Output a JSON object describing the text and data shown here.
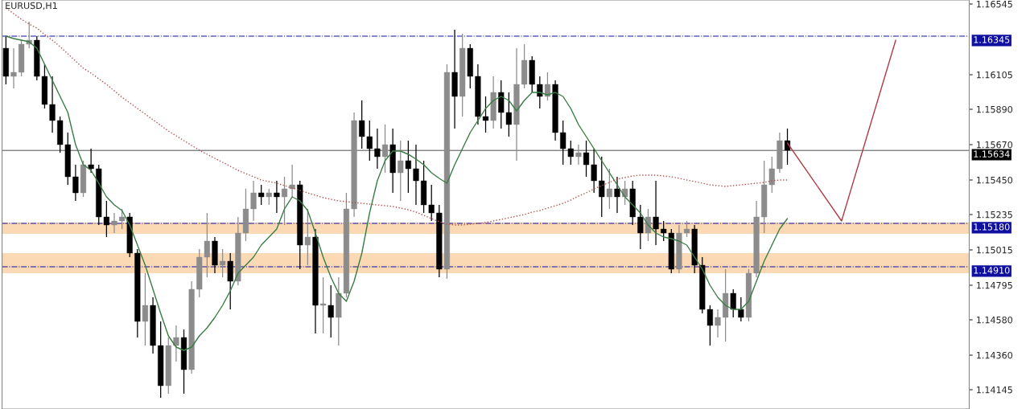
{
  "chart_data": {
    "type": "candlestick",
    "title": "EURUSD,H1",
    "categories": [
      null,
      null,
      null,
      null,
      null,
      null,
      null,
      null,
      null,
      null,
      null,
      null,
      null,
      null,
      null,
      null,
      null,
      null,
      null,
      null,
      null,
      null,
      null,
      null,
      null,
      null,
      null,
      null,
      null,
      null,
      null,
      null,
      null,
      null,
      null,
      null,
      null,
      null,
      null,
      null,
      null,
      null,
      null,
      null,
      null,
      null,
      null,
      null,
      null,
      null,
      null,
      null,
      null,
      null,
      null,
      null,
      null,
      null,
      null,
      null,
      null,
      null,
      null,
      null,
      null,
      null,
      null,
      null,
      null,
      null,
      null,
      null,
      null,
      null,
      null,
      null,
      null,
      null,
      null,
      null,
      null,
      null,
      null,
      null,
      null,
      null,
      null,
      null,
      null,
      null,
      null,
      null,
      null,
      null,
      null,
      null,
      null,
      null,
      null,
      null,
      null,
      null,
      null,
      null,
      null,
      null,
      null,
      null,
      null,
      null,
      null,
      null,
      null,
      null,
      null,
      null,
      null,
      null,
      null,
      null,
      null,
      null,
      null,
      null,
      null
    ],
    "ohlc": [
      [
        1.1627,
        1.16345,
        1.16045,
        1.16095
      ],
      [
        1.16095,
        1.1627,
        1.1602,
        1.1612
      ],
      [
        1.1612,
        1.1632,
        1.16095,
        1.16295
      ],
      [
        1.16295,
        1.16435,
        1.1627,
        1.1632
      ],
      [
        1.1632,
        1.16345,
        1.1607,
        1.16095
      ],
      [
        1.16095,
        1.1617,
        1.15895,
        1.1592
      ],
      [
        1.1592,
        1.16095,
        1.15745,
        1.1582
      ],
      [
        1.1582,
        1.15845,
        1.1562,
        1.1567
      ],
      [
        1.1567,
        1.15745,
        1.1542,
        1.1547
      ],
      [
        1.1547,
        1.15545,
        1.1532,
        1.1537
      ],
      [
        1.1537,
        1.1557,
        1.15345,
        1.15545
      ],
      [
        1.15545,
        1.15645,
        1.15495,
        1.1552
      ],
      [
        1.1552,
        1.15545,
        1.1517,
        1.1522
      ],
      [
        1.1522,
        1.1532,
        1.15095,
        1.1517
      ],
      [
        1.1517,
        1.15245,
        1.1512,
        1.15195
      ],
      [
        1.15195,
        1.1527,
        1.15145,
        1.1522
      ],
      [
        1.1522,
        1.15245,
        1.1497,
        1.14995
      ],
      [
        1.14995,
        1.1502,
        1.1447,
        1.1457
      ],
      [
        1.1457,
        1.1487,
        1.1442,
        1.1467
      ],
      [
        1.1467,
        1.1472,
        1.1437,
        1.1442
      ],
      [
        1.1442,
        1.1457,
        1.14095,
        1.1417
      ],
      [
        1.1417,
        1.1447,
        1.1412,
        1.1442
      ],
      [
        1.1442,
        1.14545,
        1.1432,
        1.1447
      ],
      [
        1.1447,
        1.1452,
        1.1412,
        1.1427
      ],
      [
        1.1427,
        1.1482,
        1.14245,
        1.1477
      ],
      [
        1.1477,
        1.1502,
        1.1472,
        1.1497
      ],
      [
        1.1497,
        1.15245,
        1.14845,
        1.1507
      ],
      [
        1.1507,
        1.15095,
        1.1487,
        1.1492
      ],
      [
        1.1492,
        1.1502,
        1.14845,
        1.14945
      ],
      [
        1.14945,
        1.14995,
        1.14645,
        1.1482
      ],
      [
        1.1482,
        1.1522,
        1.14795,
        1.1512
      ],
      [
        1.1512,
        1.15395,
        1.1507,
        1.1527
      ],
      [
        1.1527,
        1.15445,
        1.15195,
        1.1537
      ],
      [
        1.1537,
        1.1542,
        1.15295,
        1.15345
      ],
      [
        1.15345,
        1.15395,
        1.15295,
        1.1537
      ],
      [
        1.1537,
        1.15445,
        1.15245,
        1.15345
      ],
      [
        1.15345,
        1.1547,
        1.1517,
        1.15395
      ],
      [
        1.15395,
        1.15545,
        1.15345,
        1.1542
      ],
      [
        1.1542,
        1.15445,
        1.14895,
        1.15045
      ],
      [
        1.15045,
        1.1527,
        1.1492,
        1.15095
      ],
      [
        1.15095,
        1.15145,
        1.14495,
        1.1467
      ],
      [
        1.1467,
        1.14845,
        1.14495,
        1.1468
      ],
      [
        1.1467,
        1.14795,
        1.1447,
        1.14595
      ],
      [
        1.14595,
        1.14845,
        1.1442,
        1.14745
      ],
      [
        1.14745,
        1.1537,
        1.1472,
        1.1527
      ],
      [
        1.1527,
        1.1587,
        1.1522,
        1.1582
      ],
      [
        1.1582,
        1.15945,
        1.15645,
        1.1572
      ],
      [
        1.1572,
        1.1582,
        1.1557,
        1.15645
      ],
      [
        1.15645,
        1.1577,
        1.1552,
        1.15595
      ],
      [
        1.15595,
        1.15795,
        1.15495,
        1.1567
      ],
      [
        1.1567,
        1.1577,
        1.1537,
        1.15495
      ],
      [
        1.15495,
        1.15695,
        1.1532,
        1.1557
      ],
      [
        1.1557,
        1.15695,
        1.1537,
        1.1552
      ],
      [
        1.1552,
        1.1567,
        1.15295,
        1.15445
      ],
      [
        1.15445,
        1.1557,
        1.15245,
        1.15295
      ],
      [
        1.15295,
        1.1542,
        1.15195,
        1.15245
      ],
      [
        1.15245,
        1.15295,
        1.14845,
        1.14895
      ],
      [
        1.14895,
        1.1617,
        1.14835,
        1.1612
      ],
      [
        1.1612,
        1.16385,
        1.1577,
        1.1597
      ],
      [
        1.1597,
        1.1636,
        1.15845,
        1.1627
      ],
      [
        1.1627,
        1.16295,
        1.1602,
        1.16095
      ],
      [
        1.16095,
        1.1617,
        1.15795,
        1.15845
      ],
      [
        1.15845,
        1.1597,
        1.15745,
        1.1582
      ],
      [
        1.1582,
        1.16095,
        1.1577,
        1.15995
      ],
      [
        1.15995,
        1.1607,
        1.1577,
        1.1587
      ],
      [
        1.1587,
        1.15995,
        1.1572,
        1.15795
      ],
      [
        1.15795,
        1.1627,
        1.1557,
        1.16045
      ],
      [
        1.16045,
        1.16295,
        1.1602,
        1.16195
      ],
      [
        1.16195,
        1.1622,
        1.15995,
        1.16045
      ],
      [
        1.16045,
        1.16095,
        1.15895,
        1.1597
      ],
      [
        1.1597,
        1.1612,
        1.15945,
        1.16045
      ],
      [
        1.16045,
        1.1607,
        1.15695,
        1.15745
      ],
      [
        1.15745,
        1.1582,
        1.15545,
        1.15645
      ],
      [
        1.15645,
        1.15695,
        1.15545,
        1.15595
      ],
      [
        1.15595,
        1.1567,
        1.15545,
        1.1562
      ],
      [
        1.1562,
        1.15695,
        1.1547,
        1.15545
      ],
      [
        1.15545,
        1.15645,
        1.1537,
        1.15445
      ],
      [
        1.15445,
        1.15595,
        1.1522,
        1.15345
      ],
      [
        1.15345,
        1.1552,
        1.1527,
        1.15395
      ],
      [
        1.15395,
        1.1547,
        1.15245,
        1.15345
      ],
      [
        1.15345,
        1.15445,
        1.15295,
        1.15395
      ],
      [
        1.15395,
        1.15445,
        1.1517,
        1.1522
      ],
      [
        1.1522,
        1.15295,
        1.1502,
        1.1512
      ],
      [
        1.1512,
        1.1527,
        1.1507,
        1.1522
      ],
      [
        1.1522,
        1.15445,
        1.15045,
        1.15145
      ],
      [
        1.15145,
        1.15195,
        1.1507,
        1.1512
      ],
      [
        1.1512,
        1.15145,
        1.1487,
        1.14895
      ],
      [
        1.14895,
        1.1517,
        1.1487,
        1.1512
      ],
      [
        1.1512,
        1.15195,
        1.15095,
        1.15145
      ],
      [
        1.15145,
        1.1517,
        1.1487,
        1.1492
      ],
      [
        1.1492,
        1.1497,
        1.1462,
        1.14645
      ],
      [
        1.14645,
        1.1467,
        1.1442,
        1.14545
      ],
      [
        1.14545,
        1.14645,
        1.1447,
        1.14595
      ],
      [
        1.14595,
        1.14895,
        1.14445,
        1.14745
      ],
      [
        1.14745,
        1.1477,
        1.14595,
        1.14645
      ],
      [
        1.14645,
        1.1472,
        1.1457,
        1.14595
      ],
      [
        1.14595,
        1.14895,
        1.1457,
        1.1487
      ],
      [
        1.1487,
        1.1532,
        1.14845,
        1.1522
      ],
      [
        1.1522,
        1.1557,
        1.1512,
        1.1542
      ],
      [
        1.1542,
        1.15595,
        1.1537,
        1.1552
      ],
      [
        1.1552,
        1.15745,
        1.15495,
        1.15695
      ],
      [
        1.15695,
        1.1577,
        1.15545,
        1.15635
      ],
      null,
      null,
      null,
      null,
      null,
      null,
      null,
      null,
      null,
      null,
      null,
      null,
      null,
      null,
      null,
      null,
      null,
      null,
      null,
      null,
      null,
      null,
      null
    ],
    "colors": [
      "#000000",
      "#8c8c8c",
      "#8c8c8c",
      "#8c8c8c",
      "#000000",
      "#000000",
      "#000000",
      "#000000",
      "#000000",
      "#000000",
      "#8c8c8c",
      "#000000",
      "#000000",
      "#000000",
      "#8c8c8c",
      "#8c8c8c",
      "#000000",
      "#000000",
      "#8c8c8c",
      "#000000",
      "#000000",
      "#8c8c8c",
      "#8c8c8c",
      "#000000",
      "#8c8c8c",
      "#8c8c8c",
      "#8c8c8c",
      "#000000",
      "#8c8c8c",
      "#000000",
      "#8c8c8c",
      "#8c8c8c",
      "#8c8c8c",
      "#000000",
      "#8c8c8c",
      "#000000",
      "#8c8c8c",
      "#8c8c8c",
      "#000000",
      "#8c8c8c",
      "#000000",
      "#8c8c8c",
      "#000000",
      "#8c8c8c",
      "#8c8c8c",
      "#8c8c8c",
      "#000000",
      "#000000",
      "#000000",
      "#8c8c8c",
      "#000000",
      "#8c8c8c",
      "#000000",
      "#000000",
      "#000000",
      "#000000",
      "#000000",
      "#8c8c8c",
      "#000000",
      "#8c8c8c",
      "#000000",
      "#000000",
      "#000000",
      "#8c8c8c",
      "#000000",
      "#000000",
      "#8c8c8c",
      "#8c8c8c",
      "#000000",
      "#000000",
      "#8c8c8c",
      "#000000",
      "#000000",
      "#000000",
      "#8c8c8c",
      "#000000",
      "#000000",
      "#000000",
      "#8c8c8c",
      "#000000",
      "#8c8c8c",
      "#000000",
      "#000000",
      "#8c8c8c",
      "#000000",
      "#000000",
      "#000000",
      "#8c8c8c",
      "#8c8c8c",
      "#000000",
      "#000000",
      "#000000",
      "#8c8c8c",
      "#8c8c8c",
      "#000000",
      "#000000",
      "#8c8c8c",
      "#8c8c8c",
      "#8c8c8c",
      "#8c8c8c",
      "#8c8c8c",
      "#000000",
      null,
      null,
      null,
      null,
      null,
      null,
      null,
      null,
      null,
      null,
      null,
      null,
      null,
      null,
      null,
      null,
      null,
      null,
      null,
      null,
      null,
      null,
      null
    ],
    "series": [
      {
        "type": "line",
        "color": "#3a7d44",
        "line_style": "solid",
        "values": [
          1.16345,
          1.1633,
          1.1632,
          1.1631,
          1.1627,
          1.1617,
          1.1607,
          1.1597,
          1.1587,
          1.1567,
          1.15545,
          1.1551,
          1.1543,
          1.15345,
          1.15295,
          1.1526,
          1.1517,
          1.15045,
          1.1492,
          1.1477,
          1.1462,
          1.1448,
          1.1441,
          1.1439,
          1.1441,
          1.1448,
          1.1453,
          1.14595,
          1.1467,
          1.1476,
          1.1487,
          1.1492,
          1.1497,
          1.15045,
          1.15095,
          1.15145,
          1.1527,
          1.15345,
          1.1532,
          1.1526,
          1.1512,
          1.1497,
          1.14845,
          1.14745,
          1.14695,
          1.1482,
          1.14995,
          1.15245,
          1.15445,
          1.1557,
          1.1563,
          1.1563,
          1.1561,
          1.1558,
          1.15545,
          1.15495,
          1.1546,
          1.1543,
          1.15545,
          1.15645,
          1.15745,
          1.1582,
          1.15895,
          1.15945,
          1.1597,
          1.15945,
          1.1588,
          1.15945,
          1.15995,
          1.15995,
          1.1598,
          1.15995,
          1.1597,
          1.15895,
          1.15795,
          1.1572,
          1.15645,
          1.1557,
          1.15495,
          1.1542,
          1.15345,
          1.15295,
          1.15245,
          1.1517,
          1.1512,
          1.15095,
          1.15085,
          1.1507,
          1.15045,
          1.1497,
          1.14895,
          1.14795,
          1.1472,
          1.1467,
          1.14645,
          1.14645,
          1.14695,
          1.1482,
          1.14945,
          1.15045,
          1.15145,
          1.1521,
          null,
          null,
          null,
          null,
          null,
          null,
          null,
          null,
          null,
          null,
          null,
          null,
          null,
          null,
          null,
          null,
          null,
          null,
          null,
          null,
          null,
          null,
          null
        ]
      },
      {
        "type": "line",
        "color": "#b5524f",
        "line_style": "dotted",
        "values": [
          1.1652,
          1.16485,
          1.1645,
          1.1642,
          1.16395,
          1.16355,
          1.1632,
          1.1628,
          1.16235,
          1.1619,
          1.16145,
          1.16115,
          1.1608,
          1.16045,
          1.16005,
          1.15965,
          1.1593,
          1.15895,
          1.1586,
          1.15825,
          1.1579,
          1.15755,
          1.15725,
          1.15695,
          1.15665,
          1.15635,
          1.1561,
          1.15585,
          1.1556,
          1.15535,
          1.1551,
          1.1549,
          1.1547,
          1.1545,
          1.1544,
          1.1543,
          1.15415,
          1.154,
          1.15385,
          1.1537,
          1.15355,
          1.1534,
          1.1533,
          1.1532,
          1.15315,
          1.1531,
          1.15305,
          1.153,
          1.15295,
          1.1529,
          1.15285,
          1.15275,
          1.15265,
          1.1525,
          1.1523,
          1.1521,
          1.1519,
          1.15175,
          1.1517,
          1.1517,
          1.15175,
          1.1518,
          1.15185,
          1.15195,
          1.15205,
          1.15215,
          1.15225,
          1.15235,
          1.1525,
          1.1526,
          1.15275,
          1.1529,
          1.15305,
          1.15325,
          1.1535,
          1.1537,
          1.15395,
          1.15415,
          1.15435,
          1.15455,
          1.15465,
          1.15475,
          1.1548,
          1.1548,
          1.1548,
          1.15475,
          1.1547,
          1.1546,
          1.1545,
          1.1544,
          1.1543,
          1.1542,
          1.15415,
          1.1541,
          1.15415,
          1.1542,
          1.15425,
          1.1543,
          1.15435,
          1.15445,
          1.1545,
          1.1545,
          null,
          null,
          null,
          null,
          null,
          null,
          null,
          null,
          null,
          null,
          null,
          null,
          null,
          null,
          null,
          null,
          null,
          null,
          null,
          null,
          null,
          null,
          null
        ]
      },
      {
        "type": "line",
        "color": "#b03a48",
        "line_style": "solid",
        "values": [
          null,
          null,
          null,
          null,
          null,
          null,
          null,
          null,
          null,
          null,
          null,
          null,
          null,
          null,
          null,
          null,
          null,
          null,
          null,
          null,
          null,
          null,
          null,
          null,
          null,
          null,
          null,
          null,
          null,
          null,
          null,
          null,
          null,
          null,
          null,
          null,
          null,
          null,
          null,
          null,
          null,
          null,
          null,
          null,
          null,
          null,
          null,
          null,
          null,
          null,
          null,
          null,
          null,
          null,
          null,
          null,
          null,
          null,
          null,
          null,
          null,
          null,
          null,
          null,
          null,
          null,
          null,
          null,
          null,
          null,
          null,
          null,
          null,
          null,
          null,
          null,
          null,
          null,
          null,
          null,
          null,
          null,
          null,
          null,
          null,
          null,
          null,
          null,
          null,
          null,
          null,
          null,
          null,
          null,
          null,
          null,
          null,
          null,
          null,
          null,
          null,
          1.1568,
          null,
          null,
          null,
          null,
          null,
          null,
          1.15195,
          null,
          null,
          null,
          null,
          null,
          null,
          1.1632,
          null,
          null,
          null,
          null,
          null,
          null,
          null,
          null,
          null
        ]
      }
    ],
    "ylim": [
      1.14025,
      1.1657
    ],
    "yticks": [
      1.16545,
      1.16105,
      {
        "value": 1.1589,
        "label": "1.15890"
      },
      {
        "value": 1.1567,
        "label": "1.15670"
      },
      {
        "value": 1.1545,
        "label": "1.15450"
      },
      1.15235,
      1.15015,
      1.14795,
      {
        "value": 1.1458,
        "label": "1.14580"
      },
      {
        "value": 1.1436,
        "label": "1.14360"
      },
      1.14145
    ],
    "ref_lines": [
      {
        "axis": "y",
        "value": 1.16345,
        "label": "1.16345",
        "color": "#1010a0",
        "line_style": "dashdot"
      },
      {
        "axis": "y",
        "value": 1.15634,
        "label": "1.15634",
        "color": "#000000",
        "line_style": "solid"
      },
      {
        "axis": "y",
        "value": 1.1518,
        "label": "1.15180",
        "color": "#1010a0",
        "line_style": "dashdot"
      },
      {
        "axis": "y",
        "value": 1.1491,
        "label": "1.14910",
        "color": "#1010a0",
        "line_style": "dashdot"
      }
    ],
    "bands": [
      {
        "axis": "y",
        "from": 1.15115,
        "to": 1.15185,
        "color": "#fbd9b5"
      },
      {
        "axis": "y",
        "from": 1.1487,
        "to": 1.14995,
        "color": "#fbd9b5"
      }
    ],
    "grid": false,
    "legend": false
  }
}
